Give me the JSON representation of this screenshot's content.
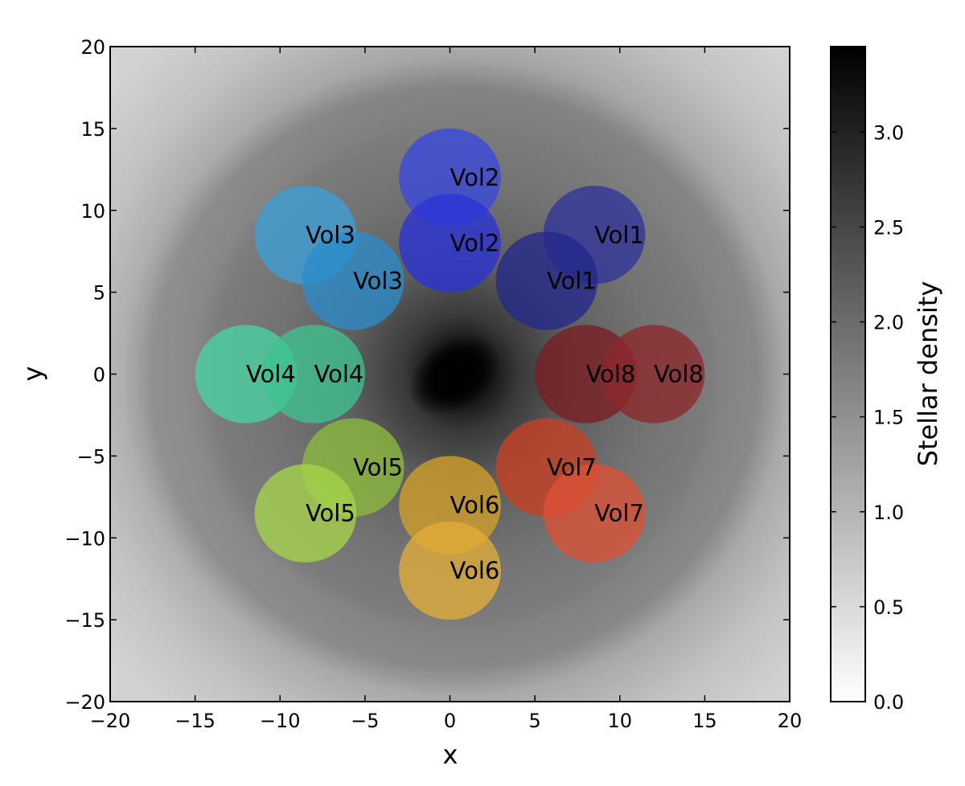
{
  "chart_data": {
    "type": "scatter",
    "title": "",
    "xlabel": "x",
    "ylabel": "y",
    "xlim": [
      -20,
      20
    ],
    "ylim": [
      -20,
      20
    ],
    "x_ticks": [
      -20,
      -15,
      -10,
      -5,
      0,
      5,
      10,
      15,
      20
    ],
    "y_ticks": [
      -20,
      -15,
      -10,
      -5,
      0,
      5,
      10,
      15,
      20
    ],
    "x_tick_labels": [
      "−20",
      "−15",
      "−10",
      "−5",
      "0",
      "5",
      "10",
      "15",
      "20"
    ],
    "y_tick_labels": [
      "−20",
      "−15",
      "−10",
      "−5",
      "0",
      "5",
      "10",
      "15",
      "20"
    ],
    "grid": false,
    "background": "grayscale stellar density map with dense central bar and outer ring",
    "circle_radius": 3,
    "volumes": [
      {
        "label": "Vol1",
        "x": 8.5,
        "y": 8.5,
        "color": "#2f3499"
      },
      {
        "label": "Vol1",
        "x": 5.7,
        "y": 5.7,
        "color": "#23288a"
      },
      {
        "label": "Vol2",
        "x": 0.0,
        "y": 12.0,
        "color": "#3a48de"
      },
      {
        "label": "Vol2",
        "x": 0.0,
        "y": 8.0,
        "color": "#2a33d6"
      },
      {
        "label": "Vol3",
        "x": -8.5,
        "y": 8.5,
        "color": "#3c9fd8"
      },
      {
        "label": "Vol3",
        "x": -5.7,
        "y": 5.7,
        "color": "#2b8cc9"
      },
      {
        "label": "Vol4",
        "x": -12.0,
        "y": 0.0,
        "color": "#48d4a2"
      },
      {
        "label": "Vol4",
        "x": -8.0,
        "y": 0.0,
        "color": "#3ec290"
      },
      {
        "label": "Vol5",
        "x": -5.7,
        "y": -5.7,
        "color": "#8cbb3c"
      },
      {
        "label": "Vol5",
        "x": -8.5,
        "y": -8.5,
        "color": "#a5d44a"
      },
      {
        "label": "Vol6",
        "x": 0.0,
        "y": -8.0,
        "color": "#d2a02a"
      },
      {
        "label": "Vol6",
        "x": 0.0,
        "y": -12.0,
        "color": "#e1ad3a"
      },
      {
        "label": "Vol7",
        "x": 5.7,
        "y": -5.7,
        "color": "#c84024"
      },
      {
        "label": "Vol7",
        "x": 8.5,
        "y": -8.5,
        "color": "#dc5136"
      },
      {
        "label": "Vol8",
        "x": 8.0,
        "y": 0.0,
        "color": "#7a1e22"
      },
      {
        "label": "Vol8",
        "x": 12.0,
        "y": 0.0,
        "color": "#8c282c"
      }
    ],
    "colorbar": {
      "label": "Stellar density",
      "range": [
        0.0,
        3.45
      ],
      "ticks": [
        0.0,
        0.5,
        1.0,
        1.5,
        2.0,
        2.5,
        3.0
      ],
      "tick_labels": [
        "0.0",
        "0.5",
        "1.0",
        "1.5",
        "2.0",
        "2.5",
        "3.0"
      ],
      "colormap": "gray_r",
      "color_low": "#ffffff",
      "color_high": "#000000"
    }
  }
}
